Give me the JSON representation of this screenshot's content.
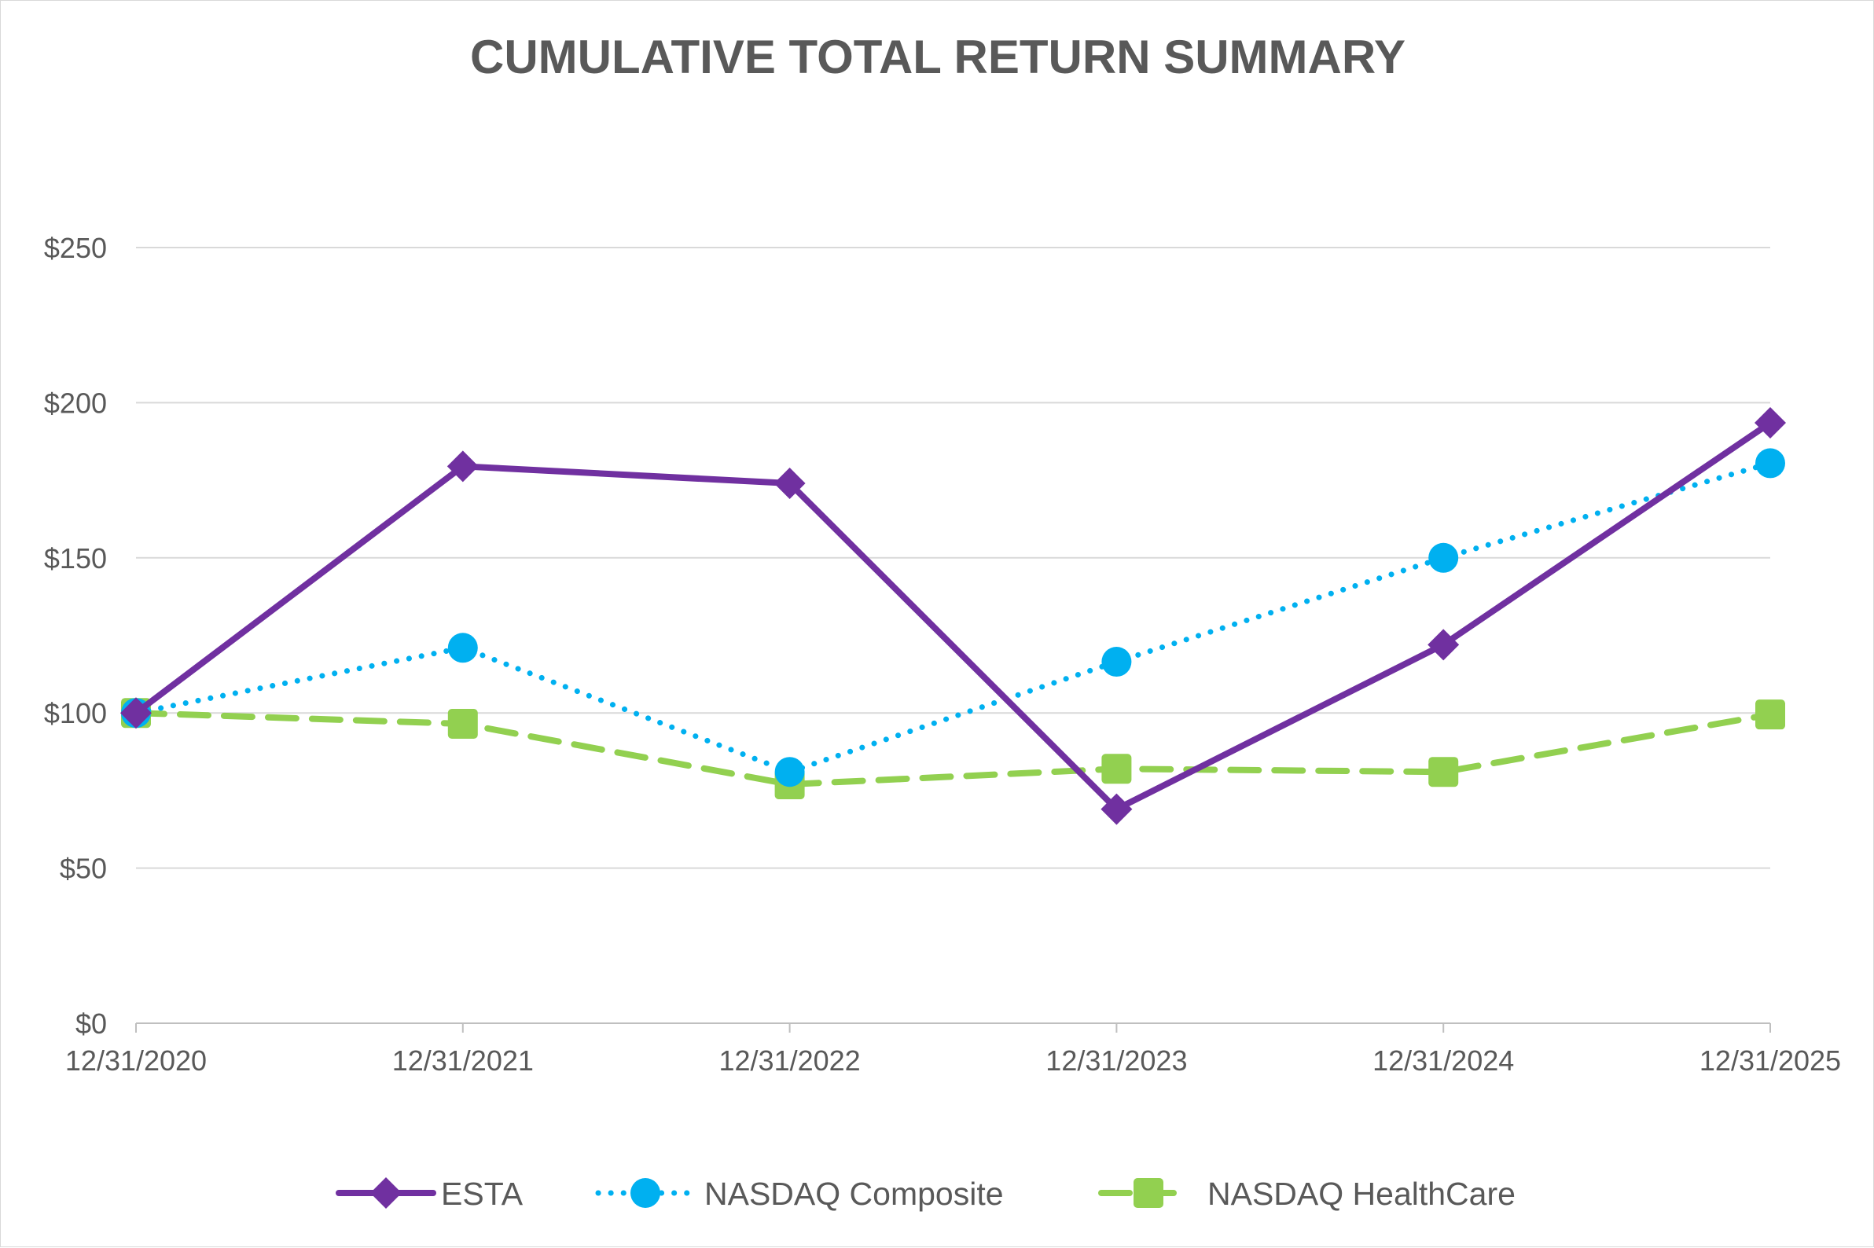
{
  "chart_data": {
    "type": "line",
    "title": "CUMULATIVE TOTAL RETURN SUMMARY",
    "xlabel": "",
    "ylabel": "",
    "categories": [
      "12/31/2020",
      "12/31/2021",
      "12/31/2022",
      "12/31/2023",
      "12/31/2024",
      "12/31/2025"
    ],
    "ylim": [
      0,
      250
    ],
    "yticks": [
      0,
      50,
      100,
      150,
      200,
      250
    ],
    "ytick_labels": [
      "$0",
      "$50",
      "$100",
      "$150",
      "$200",
      "$250"
    ],
    "grid": true,
    "legend_position": "bottom",
    "series": [
      {
        "name": "ESTA",
        "values": [
          100,
          179.5,
          174,
          69,
          122,
          193.5
        ],
        "color": "#7030a0",
        "line_style": "solid",
        "marker": "diamond"
      },
      {
        "name": "NASDAQ Composite",
        "values": [
          100,
          121,
          81,
          116.5,
          150,
          180.5
        ],
        "color": "#00b0f0",
        "line_style": "dotted",
        "marker": "circle"
      },
      {
        "name": "NASDAQ HealthCare",
        "values": [
          100,
          96.5,
          77,
          82,
          81,
          99.5
        ],
        "color": "#92d050",
        "line_style": "dashed",
        "marker": "square"
      }
    ]
  }
}
